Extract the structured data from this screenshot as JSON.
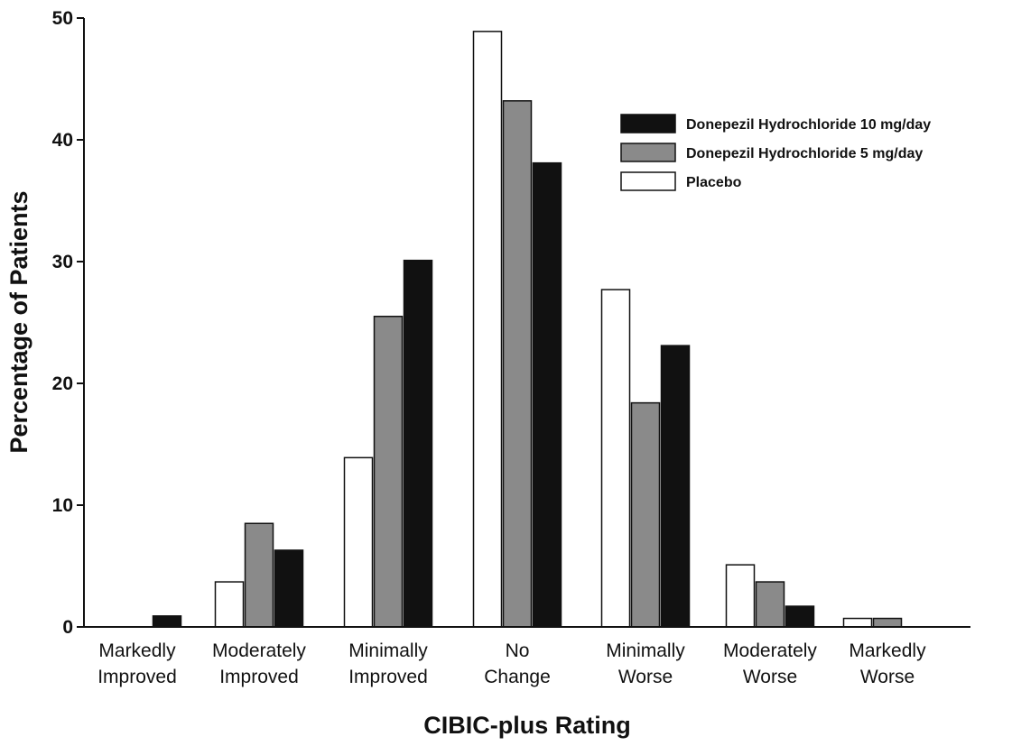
{
  "chart_data": {
    "type": "bar",
    "title": "",
    "xlabel": "CIBIC-plus Rating",
    "ylabel": "Percentage of Patients",
    "ylim": [
      0,
      50
    ],
    "yticks": [
      0,
      10,
      20,
      30,
      40,
      50
    ],
    "grid": false,
    "legend_position": "top-right",
    "categories": [
      [
        "Markedly",
        "Improved"
      ],
      [
        "Moderately",
        "Improved"
      ],
      [
        "Minimally",
        "Improved"
      ],
      [
        "No",
        "Change"
      ],
      [
        "Minimally",
        "Worse"
      ],
      [
        "Moderately",
        "Worse"
      ],
      [
        "Markedly",
        "Worse"
      ]
    ],
    "series": [
      {
        "name": "Placebo",
        "color": "#ffffff",
        "values": [
          0,
          3.7,
          13.9,
          48.9,
          27.7,
          5.1,
          0.7
        ]
      },
      {
        "name": "Donepezil Hydrochloride 5 mg/day",
        "color": "#8a8a8a",
        "values": [
          0,
          8.5,
          25.5,
          43.2,
          18.4,
          3.7,
          0.7
        ]
      },
      {
        "name": "Donepezil Hydrochloride 10 mg/day",
        "color": "#111111",
        "values": [
          0.9,
          6.3,
          30.1,
          38.1,
          23.1,
          1.7,
          0
        ]
      }
    ],
    "legend_order": [
      2,
      1,
      0
    ]
  }
}
